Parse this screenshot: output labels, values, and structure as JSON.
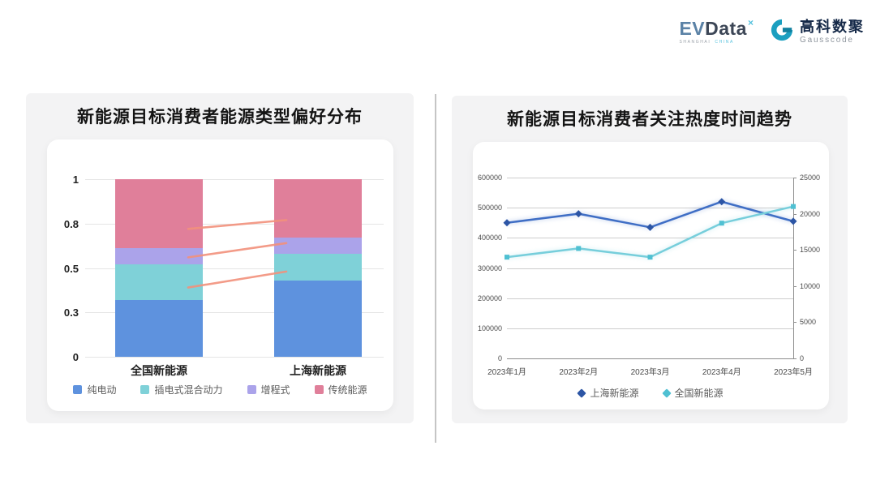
{
  "header": {
    "evdata": {
      "ev": "EV",
      "data": "Data",
      "sup": "×",
      "tagline_1": "SHANGHAI",
      "tagline_2": "CHINA"
    },
    "gausscode": {
      "cn": "高科数聚",
      "en": "Gausscode"
    }
  },
  "colors": {
    "card_bg": "#f3f3f4",
    "panel_bg": "#ffffff",
    "divider": "#b2b2b2",
    "gausscode_teal": "#1b9fc0",
    "gausscode_teal_dark": "#11809f"
  },
  "chart_data": [
    {
      "type": "bar",
      "stacked": true,
      "title": "新能源目标消费者能源类型偏好分布",
      "categories": [
        "全国新能源",
        "上海新能源"
      ],
      "series": [
        {
          "name": "纯电动",
          "color": "#5e92de",
          "values": [
            0.32,
            0.43
          ]
        },
        {
          "name": "插电式混合动力",
          "color": "#7fd1d8",
          "values": [
            0.2,
            0.15
          ]
        },
        {
          "name": "增程式",
          "color": "#aba3ea",
          "values": [
            0.09,
            0.09
          ]
        },
        {
          "name": "传统能源",
          "color": "#e07f9a",
          "values": [
            0.39,
            0.33
          ]
        }
      ],
      "y_tick_labels": [
        "1",
        "0.8",
        "0.5",
        "0.3",
        "0"
      ],
      "ylim": [
        0,
        1
      ],
      "grid": true,
      "legend_position": "bottom",
      "trend_lines": {
        "color": "#f2917c",
        "segments": [
          {
            "from": 0.72,
            "to": 0.77
          },
          {
            "from": 0.56,
            "to": 0.64
          },
          {
            "from": 0.39,
            "to": 0.48
          }
        ]
      }
    },
    {
      "type": "line",
      "title": "新能源目标消费者关注热度时间趋势",
      "x": [
        "2023年1月",
        "2023年2月",
        "2023年3月",
        "2023年4月",
        "2023年5月"
      ],
      "series": [
        {
          "name": "上海新能源",
          "axis": "left",
          "color": "#3f6ec5",
          "marker_color": "#2c55a5",
          "values": [
            450000,
            480000,
            435000,
            520000,
            455000
          ]
        },
        {
          "name": "全国新能源",
          "axis": "right",
          "color": "#76cedb",
          "marker_color": "#4fc0d2",
          "values": [
            14000,
            15200,
            14000,
            18700,
            21000
          ]
        }
      ],
      "left_axis": {
        "min": 0,
        "max": 600000,
        "ticks": [
          "600000",
          "500000",
          "400000",
          "300000",
          "200000",
          "100000",
          "0"
        ]
      },
      "right_axis": {
        "min": 0,
        "max": 25000,
        "ticks": [
          "25000",
          "20000",
          "15000",
          "10000",
          "5000",
          "0"
        ]
      },
      "grid": true,
      "legend_position": "bottom"
    }
  ]
}
